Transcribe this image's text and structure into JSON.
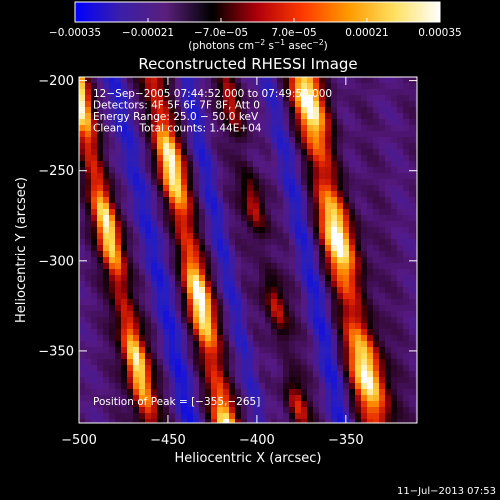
{
  "colorbar": {
    "tick_labels": [
      "−0.00035",
      "−0.00021",
      "−7.0e−05",
      "7.0e−05",
      "0.00021",
      "0.00035"
    ],
    "tick_values": [
      -0.00035,
      -0.00021,
      -7e-05,
      7e-05,
      0.00021,
      0.00035
    ],
    "range": [
      -0.00035,
      0.00035
    ],
    "unit_prefix": "(photons cm",
    "unit_exp1": "−2",
    "unit_mid": " s",
    "unit_exp2": "−1",
    "unit_mid2": " asec",
    "unit_exp3": "−2",
    "unit_suffix": ")",
    "colors": [
      "#0000ff",
      "#3a1fa8",
      "#5a1f7a",
      "#000000",
      "#b0000a",
      "#ff3a00",
      "#ff9a00",
      "#ffe060",
      "#ffffff"
    ]
  },
  "chart_data": {
    "type": "heatmap",
    "title": "Reconstructed RHESSI Image",
    "xlabel": "Heliocentric X (arcsec)",
    "ylabel": "Heliocentric Y (arcsec)",
    "xlim": [
      -500,
      -310
    ],
    "ylim": [
      -390,
      -198
    ],
    "x_ticks": [
      -500,
      -450,
      -400,
      -350
    ],
    "x_tick_labels": [
      "−500",
      "−450",
      "−400",
      "−350"
    ],
    "y_ticks": [
      -200,
      -250,
      -300,
      -350
    ],
    "y_tick_labels": [
      "−200",
      "−250",
      "−300",
      "−350"
    ],
    "stripe_slope_arcsec_x_per_y": 0.22,
    "bright_stripes": [
      {
        "x_at_y_minus300": -480,
        "width": 7
      },
      {
        "x_at_y_minus300": -437,
        "width": 8
      },
      {
        "x_at_y_minus300": -352,
        "width": 10
      }
    ],
    "secondary_stripes": [
      {
        "x_at_y_minus300": -395,
        "width": 6
      }
    ],
    "annotations": [
      "12−Sep−2005 07:44:52.000 to 07:49:50.000",
      "Detectors: 4F 5F 6F 7F 8F, Att 0",
      "Energy Range: 25.0 − 50.0 keV",
      "Clean     Total counts: 1.44E+04"
    ],
    "peak_label": "Position of Peak = [−355,−265]",
    "peak_position": [
      -355,
      -265
    ]
  },
  "footer": {
    "timestamp": "11−Jul−2013 07:53"
  }
}
